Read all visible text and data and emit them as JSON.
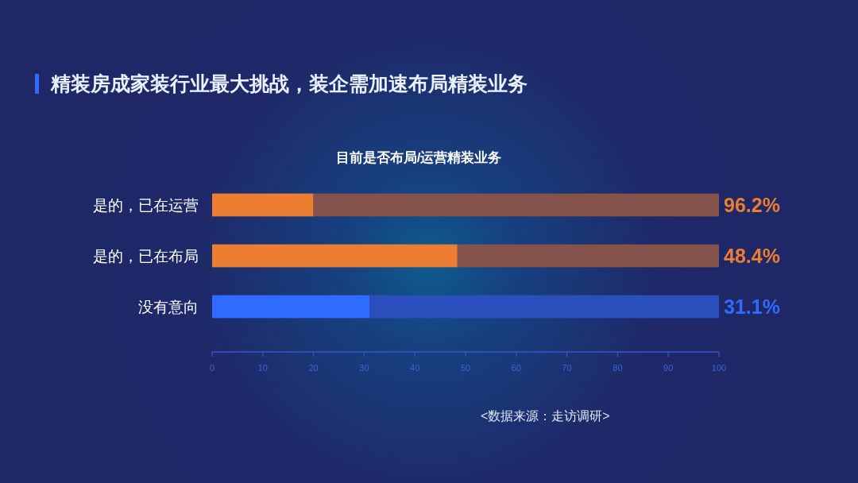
{
  "chart_data": {
    "type": "bar",
    "orientation": "horizontal",
    "stacked": true,
    "title": "精装房成家装行业最大挑战，装企需加速布局精装业务",
    "subtitle": "目前是否布局/运营精装业务",
    "categories": [
      "是的，已在运营",
      "是的，已在布局",
      "没有意向"
    ],
    "series": [
      {
        "colors": [
          "#ed7d31",
          "#ed7d31",
          "#2f6bff"
        ],
        "values": [
          20,
          48.4,
          31.1
        ],
        "value_labels": [
          null,
          "48.4%",
          "31.1%"
        ]
      },
      {
        "colors": [
          "#85524c",
          "#85524c",
          "#2b4fbd"
        ],
        "values": [
          80,
          51.6,
          68.9
        ]
      }
    ],
    "xlim": [
      0,
      100
    ],
    "xticks": [
      0,
      10,
      20,
      30,
      40,
      50,
      60,
      70,
      80,
      90,
      100
    ],
    "annotations": [
      {
        "text": "96.2%",
        "x": 100,
        "y": "是的，已在运营"
      },
      "<数据来源：走访调研>"
    ]
  }
}
